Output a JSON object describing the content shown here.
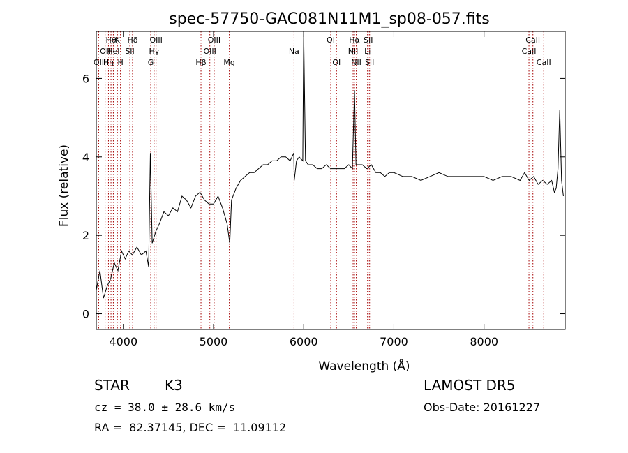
{
  "chart_data": {
    "type": "line",
    "title": "spec-57750-GAC081N11M1_sp08-057.fits",
    "xlabel": "Wavelength (Å)",
    "ylabel": "Flux (relative)",
    "xlim": [
      3700,
      8900
    ],
    "ylim": [
      -0.4,
      7.2
    ],
    "x_ticks": [
      4000,
      5000,
      6000,
      7000,
      8000
    ],
    "y_ticks": [
      0,
      2,
      4,
      6
    ],
    "grid": false,
    "legend": "none",
    "line_color": "#000000",
    "marker_color": "#a40000",
    "series": [
      {
        "x": [
          3700,
          3740,
          3780,
          3820,
          3860,
          3900,
          3940,
          3980,
          4020,
          4060,
          4100,
          4150,
          4200,
          4250,
          4280,
          4300,
          4320,
          4360,
          4400,
          4450,
          4500,
          4550,
          4600,
          4650,
          4700,
          4750,
          4800,
          4850,
          4900,
          4950,
          5000,
          5050,
          5100,
          5150,
          5180,
          5200,
          5250,
          5300,
          5350,
          5400,
          5450,
          5500,
          5550,
          5600,
          5650,
          5700,
          5750,
          5800,
          5850,
          5890,
          5895,
          5920,
          5950,
          5990,
          6000,
          6020,
          6050,
          6100,
          6150,
          6200,
          6250,
          6300,
          6350,
          6400,
          6450,
          6500,
          6540,
          6563,
          6580,
          6600,
          6650,
          6700,
          6750,
          6800,
          6850,
          6900,
          6950,
          7000,
          7100,
          7200,
          7300,
          7400,
          7500,
          7600,
          7700,
          7800,
          7900,
          8000,
          8100,
          8200,
          8300,
          8400,
          8450,
          8500,
          8550,
          8600,
          8650,
          8700,
          8750,
          8780,
          8800,
          8820,
          8840,
          8860,
          8880
        ],
        "y": [
          0.6,
          1.1,
          0.4,
          0.7,
          0.9,
          1.3,
          1.1,
          1.6,
          1.4,
          1.6,
          1.5,
          1.7,
          1.5,
          1.6,
          1.2,
          4.1,
          1.8,
          2.1,
          2.3,
          2.6,
          2.5,
          2.7,
          2.6,
          3.0,
          2.9,
          2.7,
          3.0,
          3.1,
          2.9,
          2.8,
          2.8,
          3.0,
          2.7,
          2.3,
          1.8,
          2.9,
          3.2,
          3.4,
          3.5,
          3.6,
          3.6,
          3.7,
          3.8,
          3.8,
          3.9,
          3.9,
          4.0,
          4.0,
          3.9,
          4.1,
          3.4,
          3.9,
          4.0,
          3.9,
          7.2,
          3.9,
          3.8,
          3.8,
          3.7,
          3.7,
          3.8,
          3.7,
          3.7,
          3.7,
          3.7,
          3.8,
          3.7,
          5.7,
          3.8,
          3.8,
          3.8,
          3.7,
          3.8,
          3.6,
          3.6,
          3.5,
          3.6,
          3.6,
          3.5,
          3.5,
          3.4,
          3.5,
          3.6,
          3.5,
          3.5,
          3.5,
          3.5,
          3.5,
          3.4,
          3.5,
          3.5,
          3.4,
          3.6,
          3.4,
          3.5,
          3.3,
          3.4,
          3.3,
          3.4,
          3.1,
          3.2,
          3.7,
          5.2,
          3.4,
          3.0
        ]
      }
    ],
    "line_markers": [
      {
        "x": 3727,
        "label": "OII",
        "row": 2
      },
      {
        "x": 3798,
        "label": "OII",
        "row": 1
      },
      {
        "x": 3835,
        "label": "Hη",
        "row": 2
      },
      {
        "x": 3863,
        "label": "Hθ",
        "row": 0
      },
      {
        "x": 3889,
        "label": "HeI",
        "row": 1
      },
      {
        "x": 3934,
        "label": "K",
        "row": 0
      },
      {
        "x": 3968,
        "label": "H",
        "row": 2
      },
      {
        "x": 4072,
        "label": "SII",
        "row": 1
      },
      {
        "x": 4102,
        "label": "Hδ",
        "row": 0
      },
      {
        "x": 4304,
        "label": "G",
        "row": 2
      },
      {
        "x": 4341,
        "label": "Hγ",
        "row": 1
      },
      {
        "x": 4363,
        "label": "OIII",
        "row": 0
      },
      {
        "x": 4861,
        "label": "Hβ",
        "row": 2
      },
      {
        "x": 4959,
        "label": "OIII",
        "row": 1
      },
      {
        "x": 5007,
        "label": "OIII",
        "row": 0
      },
      {
        "x": 5175,
        "label": "Mg",
        "row": 2
      },
      {
        "x": 5893,
        "label": "Na",
        "row": 1
      },
      {
        "x": 6300,
        "label": "OI",
        "row": 0
      },
      {
        "x": 6364,
        "label": "OI",
        "row": 2
      },
      {
        "x": 6548,
        "label": "NII",
        "row": 1
      },
      {
        "x": 6563,
        "label": "Hα",
        "row": 0
      },
      {
        "x": 6583,
        "label": "NII",
        "row": 2
      },
      {
        "x": 6708,
        "label": "Li",
        "row": 1
      },
      {
        "x": 6716,
        "label": "SII",
        "row": 0
      },
      {
        "x": 6731,
        "label": "SII",
        "row": 2
      },
      {
        "x": 8498,
        "label": "CaII",
        "row": 1
      },
      {
        "x": 8542,
        "label": "CaII",
        "row": 0
      },
      {
        "x": 8662,
        "label": "CaII",
        "row": 2
      }
    ]
  },
  "footer": {
    "object_class": "STAR",
    "subclass": "K3",
    "survey": "LAMOST DR5",
    "cz": "cz = 38.0 ± 28.6 km/s",
    "obs_date": "Obs-Date: 20161227",
    "coords": "RA =  82.37145, DEC =  11.09112"
  }
}
